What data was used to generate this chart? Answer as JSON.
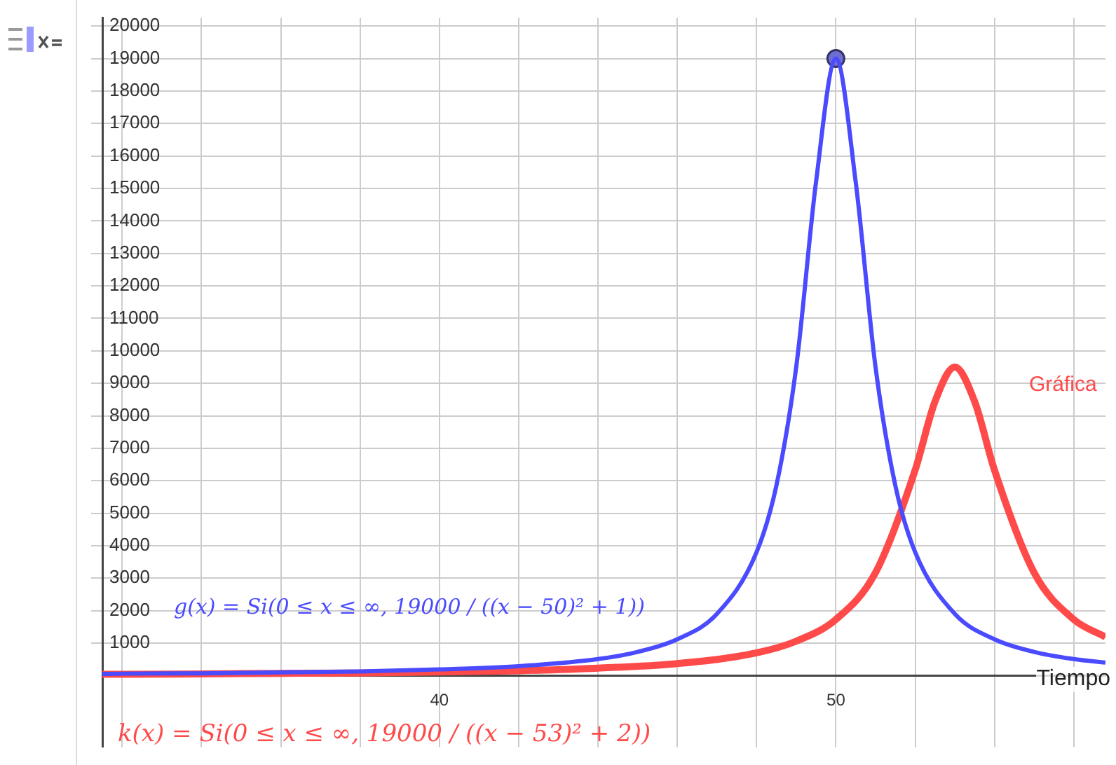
{
  "chart_data": {
    "type": "line",
    "xlabel": "Tiempo",
    "annotations": [
      "g(x) = Si(0 ≤ x ≤ ∞, 19000 / ((x − 50)² + 1))",
      "k(x) = Si(0 ≤ x ≤ ∞, 19000 / ((x − 53)² + 2))",
      "Gráfica"
    ],
    "xlim": [
      31.5,
      56.8
    ],
    "ylim": [
      -2200,
      20250
    ],
    "xticks": [
      {
        "value": 32,
        "label": null
      },
      {
        "value": 34,
        "label": null
      },
      {
        "value": 36,
        "label": null
      },
      {
        "value": 38,
        "label": null
      },
      40,
      {
        "value": 42,
        "label": null
      },
      {
        "value": 44,
        "label": null
      },
      {
        "value": 46,
        "label": null
      },
      {
        "value": 48,
        "label": null
      },
      50,
      {
        "value": 52,
        "label": null
      },
      {
        "value": 54,
        "label": null
      },
      {
        "value": 56,
        "label": null
      }
    ],
    "yticks": [
      1000,
      2000,
      3000,
      4000,
      5000,
      6000,
      7000,
      8000,
      9000,
      10000,
      11000,
      12000,
      13000,
      14000,
      15000,
      16000,
      17000,
      18000,
      19000,
      20000
    ],
    "grid": true,
    "legend": false,
    "marker": "none",
    "line_style": "solid",
    "series": [
      {
        "color": "#4a4aff",
        "x": [
          31.5,
          32,
          34,
          36,
          38,
          40,
          42,
          44,
          45,
          46,
          47,
          48,
          48.5,
          49,
          49.5,
          50,
          50.5,
          51,
          51.5,
          52,
          53,
          54,
          55,
          56,
          56.8
        ],
        "values": [
          50,
          60,
          70,
          100,
          130,
          190,
          290,
          510,
          730,
          1120,
          1900,
          3800,
          5850,
          9500,
          15200,
          19000,
          15200,
          9500,
          5850,
          3800,
          1900,
          1120,
          730,
          510,
          400
        ]
      },
      {
        "color": "#ff4a4a",
        "x": [
          31.5,
          32,
          34,
          36,
          38,
          40,
          42,
          44,
          46,
          48,
          49,
          50,
          51,
          52,
          52.5,
          53,
          53.5,
          54,
          55,
          56,
          56.8
        ],
        "values": [
          40,
          40,
          50,
          70,
          80,
          110,
          150,
          230,
          370,
          700,
          1060,
          1730,
          3170,
          6330,
          8440,
          9500,
          8440,
          6330,
          3170,
          1730,
          1190
        ]
      },
      {
        "type": "scatter",
        "marker": "circle",
        "color": "#6f6fd0",
        "x": [
          50
        ],
        "values": [
          19000
        ]
      }
    ]
  }
}
